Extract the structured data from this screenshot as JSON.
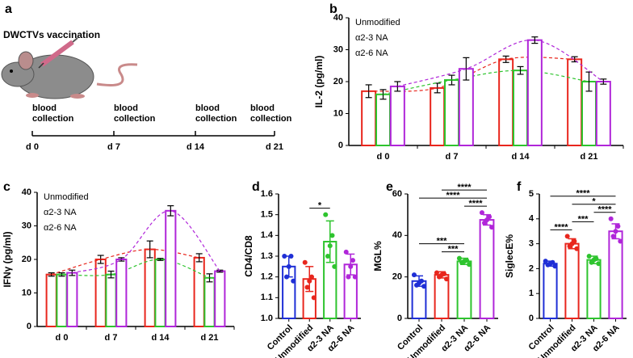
{
  "timeline": {
    "label": "a",
    "title": "DWCTVs vaccination",
    "events": [
      {
        "text": "blood collection",
        "day": "d 0"
      },
      {
        "text": "blood collection",
        "day": "d 7"
      },
      {
        "text": "blood collection",
        "day": "d 14"
      },
      {
        "text": "blood collection",
        "day": "d 21"
      }
    ]
  },
  "chart_data": [
    {
      "type": "grouped-bar",
      "label": "b",
      "y_label": "IL-2 (pg/ml)",
      "categories": [
        "d 0",
        "d 7",
        "d 14",
        "d 21"
      ],
      "ylim": [
        0,
        40
      ],
      "yticks": [
        0,
        10,
        20,
        30,
        40
      ],
      "trend_lines": true,
      "series": [
        {
          "name": "Unmodified",
          "color": "#e8261d",
          "values": [
            17,
            18,
            27,
            27
          ],
          "errors": [
            2,
            1.5,
            1,
            0.8
          ]
        },
        {
          "name": "α2-3 NA",
          "color": "#2ec42e",
          "values": [
            16,
            20.5,
            23.5,
            20
          ],
          "errors": [
            1.5,
            1.5,
            1.2,
            3
          ]
        },
        {
          "name": "α2-6 NA",
          "color": "#b026d9",
          "values": [
            18.5,
            24,
            33,
            20
          ],
          "errors": [
            1.5,
            3.5,
            1,
            0.8
          ]
        }
      ]
    },
    {
      "type": "grouped-bar",
      "label": "c",
      "y_label": "IFNγ (pg/ml)",
      "categories": [
        "d 0",
        "d 7",
        "d 14",
        "d 21"
      ],
      "ylim": [
        0,
        40
      ],
      "yticks": [
        0,
        10,
        20,
        30,
        40
      ],
      "trend_lines": true,
      "series": [
        {
          "name": "Unmodified",
          "color": "#e8261d",
          "values": [
            15.5,
            20,
            23,
            20.5
          ],
          "errors": [
            0.5,
            1.2,
            2.5,
            1.2
          ]
        },
        {
          "name": "α2-3 NA",
          "color": "#2ec42e",
          "values": [
            15.5,
            15.5,
            20,
            14.5
          ],
          "errors": [
            0.5,
            1,
            0.3,
            1.2
          ]
        },
        {
          "name": "α2-6 NA",
          "color": "#b026d9",
          "values": [
            16,
            20,
            34.5,
            16.5
          ],
          "errors": [
            0.8,
            0.5,
            1.5,
            0.3
          ]
        }
      ]
    },
    {
      "type": "dot-bar",
      "label": "d",
      "y_label": "CD4/CD8",
      "categories": [
        "Control",
        "Unmodified",
        "α2-3 NA",
        "α2-6 NA"
      ],
      "colors": [
        "#1f2fd6",
        "#e8261d",
        "#2ec42e",
        "#b026d9"
      ],
      "values": [
        1.25,
        1.19,
        1.37,
        1.26
      ],
      "errors": [
        0.05,
        0.06,
        0.1,
        0.05
      ],
      "points": [
        [
          1.3,
          1.3,
          1.25,
          1.2,
          1.18
        ],
        [
          1.27,
          1.2,
          1.18,
          1.15,
          1.1
        ],
        [
          1.5,
          1.4,
          1.35,
          1.3,
          1.25
        ],
        [
          1.32,
          1.28,
          1.25,
          1.2,
          1.2
        ]
      ],
      "ylim": [
        1,
        1.6
      ],
      "yticks": [
        {
          "value": 1,
          "label": "1.0"
        },
        1.1,
        1.2,
        1.3,
        1.4,
        1.5,
        1.6
      ],
      "significance": [
        {
          "from": 1,
          "to": 2,
          "label": "*"
        }
      ]
    },
    {
      "type": "dot-bar",
      "label": "e",
      "y_label": "MGL%",
      "categories": [
        "Control",
        "Unmodified",
        "α2-3 NA",
        "α2-6 NA"
      ],
      "colors": [
        "#1f2fd6",
        "#e8261d",
        "#2ec42e",
        "#b026d9"
      ],
      "values": [
        18,
        21,
        27.5,
        47.5
      ],
      "errors": [
        2.5,
        1.5,
        1.5,
        2.5
      ],
      "points": [
        [
          21,
          18,
          17,
          16,
          15.5
        ],
        [
          22,
          21.5,
          21,
          20,
          19
        ],
        [
          29,
          28,
          27.5,
          27,
          26
        ],
        [
          51,
          49,
          47.5,
          46,
          44
        ]
      ],
      "ylim": [
        0,
        60
      ],
      "yticks": [
        0,
        20,
        40,
        60
      ],
      "significance": [
        {
          "from": 1,
          "to": 2,
          "label": "***"
        },
        {
          "from": 0,
          "to": 2,
          "label": "***"
        },
        {
          "from": 2,
          "to": 3,
          "label": "****"
        },
        {
          "from": 0,
          "to": 3,
          "label": "****"
        },
        {
          "from": 1,
          "to": 3,
          "label": "****"
        }
      ]
    },
    {
      "type": "dot-bar",
      "label": "f",
      "y_label": "SiglecE%",
      "categories": [
        "Control",
        "Unmodified",
        "α2-3 NA",
        "α2-6 NA"
      ],
      "colors": [
        "#1f2fd6",
        "#e8261d",
        "#2ec42e",
        "#b026d9"
      ],
      "values": [
        2.2,
        3,
        2.35,
        3.5
      ],
      "errors": [
        0.1,
        0.2,
        0.15,
        0.3
      ],
      "points": [
        [
          2.3,
          2.25,
          2.2,
          2.15,
          2.1
        ],
        [
          3.3,
          3.1,
          3,
          2.9,
          2.8
        ],
        [
          2.5,
          2.4,
          2.35,
          2.25,
          2.2
        ],
        [
          4,
          3.7,
          3.5,
          3.3,
          3.1
        ]
      ],
      "ylim": [
        0,
        5
      ],
      "yticks": [
        0,
        1,
        2,
        3,
        4,
        5
      ],
      "significance": [
        {
          "from": 0,
          "to": 1,
          "label": "****"
        },
        {
          "from": 1,
          "to": 2,
          "label": "***"
        },
        {
          "from": 2,
          "to": 3,
          "label": "****"
        },
        {
          "from": 1,
          "to": 3,
          "label": "*"
        },
        {
          "from": 0,
          "to": 3,
          "label": "****"
        }
      ]
    }
  ]
}
